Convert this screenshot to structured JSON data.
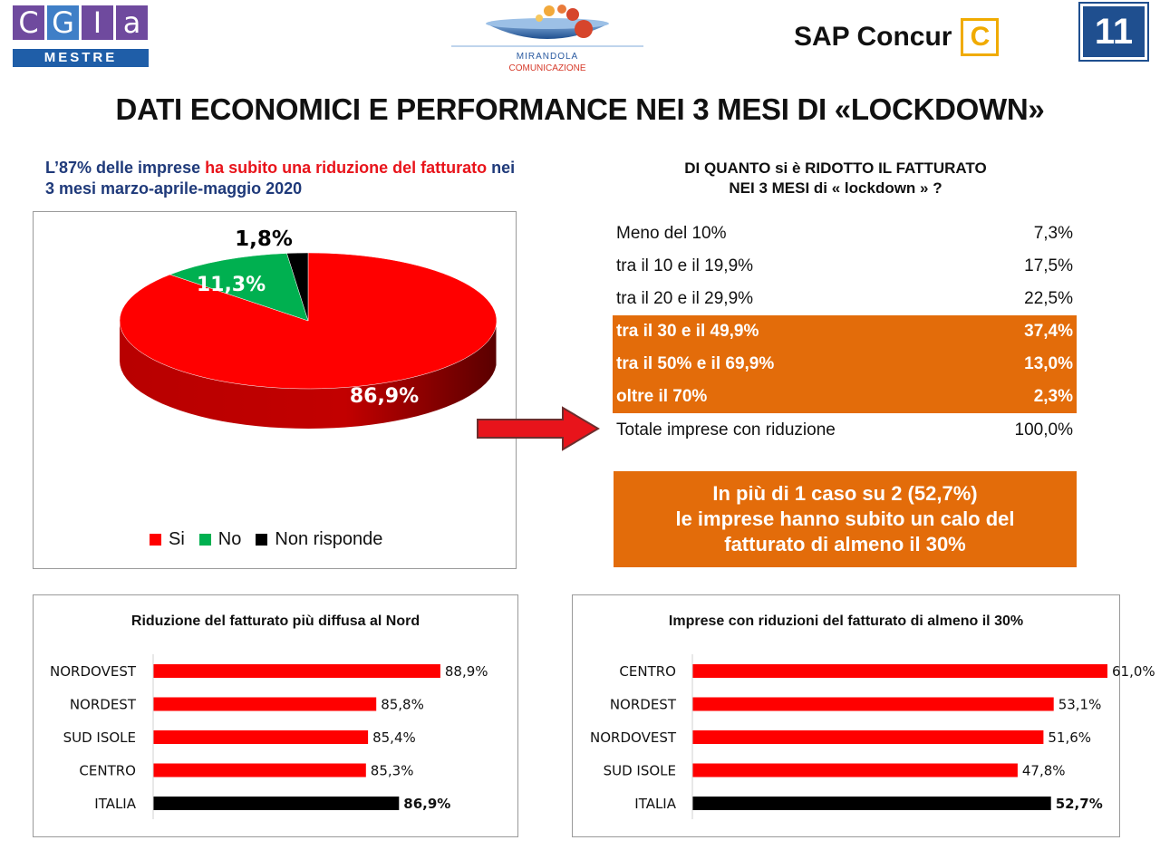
{
  "header": {
    "cgia_letters": [
      "C",
      "G",
      "I",
      "a"
    ],
    "cgia_colors": [
      "#6f4a9e",
      "#3f7fc7",
      "#6f4a9e",
      "#6f4a9e"
    ],
    "cgia_sub": "MESTRE",
    "mirandola_line1": "MIRANDOLA",
    "mirandola_line2": "COMUNICAZIONE",
    "sap_text": "SAP Concur",
    "sap_mark": "C",
    "page_number": "11"
  },
  "title": "DATI ECONOMICI E PERFORMANCE NEI 3 MESI DI «LOCKDOWN»",
  "lead": {
    "part1": "L’87% delle imprese ",
    "part2_red": "ha subito una riduzione del fatturato",
    "part3": " nei 3 mesi marzo-aprile-maggio 2020"
  },
  "distribution": {
    "title_line1": "DI QUANTO si è RIDOTTO IL FATTURATO",
    "title_line2": "NEI 3 MESI di « lockdown » ?",
    "rows": [
      {
        "label": "Meno del 10%",
        "value": "7,3%",
        "highlight": false
      },
      {
        "label": "tra il 10 e il 19,9%",
        "value": "17,5%",
        "highlight": false
      },
      {
        "label": "tra il 20 e il 29,9%",
        "value": "22,5%",
        "highlight": false
      },
      {
        "label": "tra il 30 e il 49,9%",
        "value": "37,4%",
        "highlight": true
      },
      {
        "label": "tra il 50% e il 69,9%",
        "value": "13,0%",
        "highlight": true
      },
      {
        "label": "oltre il 70%",
        "value": "2,3%",
        "highlight": true
      }
    ],
    "total_label": "Totale imprese con riduzione",
    "total_value": "100,0%"
  },
  "callout": {
    "line1": "In più di 1 caso su 2 (52,7%)",
    "line2": "le imprese hanno subito un calo del",
    "line3": "fatturato di almeno il 30%"
  },
  "colors": {
    "red": "#ff0000",
    "green": "#00b050",
    "black": "#000000",
    "orange": "#e36c0a",
    "arrow": "#e8141b"
  },
  "chart_data": [
    {
      "type": "pie",
      "title": "",
      "categories": [
        "Si",
        "No",
        "Non risponde"
      ],
      "values": [
        86.9,
        11.3,
        1.8
      ],
      "labels": [
        "86,9%",
        "11,3%",
        "1,8%"
      ],
      "colors": [
        "#ff0000",
        "#00b050",
        "#000000"
      ],
      "legend": "bottom"
    },
    {
      "type": "bar",
      "orientation": "horizontal",
      "title": "Riduzione del fatturato più diffusa al Nord",
      "categories": [
        "NORDOVEST",
        "NORDEST",
        "SUD ISOLE",
        "CENTRO",
        "ITALIA"
      ],
      "values": [
        88.9,
        85.8,
        85.4,
        85.3,
        86.9
      ],
      "labels": [
        "88,9%",
        "85,8%",
        "85,4%",
        "85,3%",
        "86,9%"
      ],
      "highlight_category": "ITALIA",
      "xlim": [
        75,
        90
      ],
      "grid": false
    },
    {
      "type": "bar",
      "orientation": "horizontal",
      "title": "Imprese con riduzioni del fatturato di almeno il 30%",
      "categories": [
        "CENTRO",
        "NORDEST",
        "NORDOVEST",
        "SUD ISOLE",
        "ITALIA"
      ],
      "values": [
        61.0,
        53.1,
        51.6,
        47.8,
        52.7
      ],
      "labels": [
        "61,0%",
        "53,1%",
        "51,6%",
        "47,8%",
        "52,7%"
      ],
      "highlight_category": "ITALIA",
      "xlim": [
        0,
        65
      ],
      "grid": false
    }
  ]
}
